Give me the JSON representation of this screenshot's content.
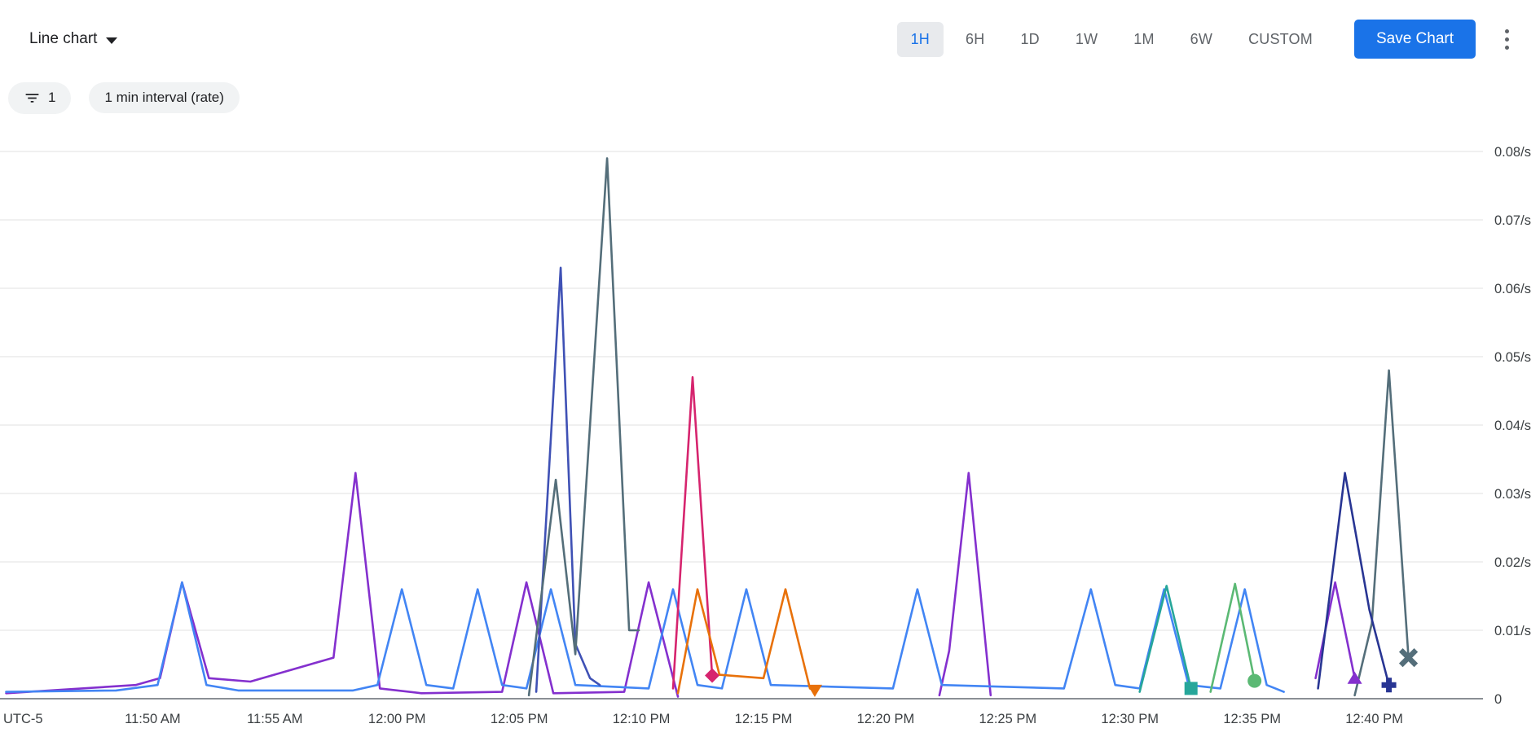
{
  "header": {
    "chart_type_label": "Line chart",
    "time_ranges": [
      "1H",
      "6H",
      "1D",
      "1W",
      "1M",
      "6W",
      "CUSTOM"
    ],
    "selected_range": "1H",
    "save_button_label": "Save Chart"
  },
  "filters": {
    "filter_count": "1",
    "interval_chip_label": "1 min interval (rate)"
  },
  "colors": {
    "accent_blue": "#1a73e8",
    "selected_range_bg": "#e8eaed",
    "chip_bg": "#f1f3f4",
    "grid_line": "#e8e8e8",
    "axis_line": "#8a8f94",
    "axis_text": "#3c4043",
    "text_secondary": "#5f6368"
  },
  "chart_data": {
    "type": "line",
    "title": "",
    "grid": true,
    "legend": "none",
    "timezone_label": "UTC-5",
    "x_unit": "minutes after 11:44 AM",
    "x_domain_minutes": [
      -0.25,
      60.45
    ],
    "x_tick_minutes": [
      6,
      11,
      16,
      21,
      26,
      31,
      36,
      41,
      46,
      51,
      56
    ],
    "x_tick_labels": [
      "11:50 AM",
      "11:55 AM",
      "12:00 PM",
      "12:05 PM",
      "12:10 PM",
      "12:15 PM",
      "12:20 PM",
      "12:25 PM",
      "12:30 PM",
      "12:35 PM",
      "12:40 PM"
    ],
    "ylim": [
      0,
      0.0805
    ],
    "y_ticks": [
      0,
      0.01,
      0.02,
      0.03,
      0.04,
      0.05,
      0.06,
      0.07,
      0.08
    ],
    "y_tick_labels": [
      "0",
      "0.01/s",
      "0.02/s",
      "0.03/s",
      "0.04/s",
      "0.05/s",
      "0.06/s",
      "0.07/s",
      "0.08/s"
    ],
    "series": [
      {
        "name": "purple",
        "color": "#8430ce",
        "segments": [
          [
            [
              0,
              0.0008
            ],
            [
              5.3,
              0.002
            ],
            [
              6.3,
              0.003
            ],
            [
              7.2,
              0.017
            ],
            [
              8.3,
              0.003
            ],
            [
              10,
              0.0025
            ],
            [
              13.4,
              0.006
            ],
            [
              14.3,
              0.033
            ],
            [
              15.3,
              0.0015
            ],
            [
              17,
              0.0008
            ],
            [
              20.3,
              0.001
            ],
            [
              21.3,
              0.017
            ],
            [
              22.4,
              0.0008
            ],
            [
              25.3,
              0.001
            ],
            [
              26.3,
              0.017
            ],
            [
              27.5,
              0.0003
            ]
          ],
          [
            [
              38.2,
              0.0005
            ],
            [
              38.6,
              0.007
            ],
            [
              39.4,
              0.033
            ],
            [
              40.3,
              0.0005
            ]
          ],
          [
            [
              53.6,
              0.003
            ],
            [
              54.4,
              0.017
            ],
            [
              55.2,
              0.003
            ]
          ]
        ],
        "marker": {
          "shape": "triangle-up",
          "at": [
            55.2,
            0.003
          ]
        }
      },
      {
        "name": "blue",
        "color": "#4285f4",
        "segments": [
          [
            [
              0,
              0.001
            ],
            [
              4.5,
              0.0012
            ],
            [
              6.2,
              0.002
            ],
            [
              7.2,
              0.017
            ],
            [
              8.2,
              0.002
            ],
            [
              9.5,
              0.0012
            ],
            [
              14.2,
              0.0012
            ],
            [
              15.2,
              0.002
            ],
            [
              16.2,
              0.016
            ],
            [
              17.2,
              0.002
            ],
            [
              18.3,
              0.0015
            ],
            [
              19.3,
              0.016
            ],
            [
              20.3,
              0.002
            ],
            [
              21.3,
              0.0015
            ],
            [
              22.3,
              0.016
            ],
            [
              23.3,
              0.002
            ],
            [
              26.3,
              0.0015
            ],
            [
              27.3,
              0.016
            ],
            [
              28.3,
              0.002
            ],
            [
              29.3,
              0.0015
            ],
            [
              30.3,
              0.016
            ],
            [
              31.3,
              0.002
            ],
            [
              36.3,
              0.0015
            ],
            [
              37.3,
              0.016
            ],
            [
              38.3,
              0.002
            ],
            [
              43.3,
              0.0015
            ],
            [
              44.4,
              0.016
            ],
            [
              45.4,
              0.002
            ],
            [
              46.4,
              0.0015
            ],
            [
              47.4,
              0.016
            ],
            [
              48.4,
              0.002
            ],
            [
              49.7,
              0.0015
            ],
            [
              50.7,
              0.016
            ],
            [
              51.6,
              0.002
            ],
            [
              52.3,
              0.001
            ]
          ]
        ]
      },
      {
        "name": "indigo",
        "color": "#3f51b5",
        "segments": [
          [
            [
              21.7,
              0.001
            ],
            [
              22.7,
              0.063
            ],
            [
              23.3,
              0.008
            ],
            [
              23.9,
              0.003
            ],
            [
              24.3,
              0.002
            ]
          ]
        ]
      },
      {
        "name": "slate",
        "color": "#546e7a",
        "segments": [
          [
            [
              21.4,
              0.0005
            ],
            [
              22.5,
              0.032
            ],
            [
              23.3,
              0.0065
            ],
            [
              24.6,
              0.079
            ],
            [
              25.5,
              0.01
            ],
            [
              25.9,
              0.01
            ]
          ],
          [
            [
              55.2,
              0.0005
            ],
            [
              55.9,
              0.011
            ],
            [
              56.6,
              0.048
            ],
            [
              57.4,
              0.006
            ]
          ]
        ],
        "marker": {
          "shape": "x",
          "at": [
            57.4,
            0.006
          ]
        }
      },
      {
        "name": "pink",
        "color": "#d6246e",
        "segments": [
          [
            [
              27.3,
              0.0015
            ],
            [
              28.1,
              0.047
            ],
            [
              28.9,
              0.0034
            ]
          ]
        ],
        "marker": {
          "shape": "diamond",
          "at": [
            28.9,
            0.0034
          ]
        }
      },
      {
        "name": "orange",
        "color": "#e8710a",
        "segments": [
          [
            [
              27.5,
              0.0008
            ],
            [
              28.3,
              0.016
            ],
            [
              29.2,
              0.0035
            ],
            [
              31,
              0.003
            ],
            [
              31.9,
              0.016
            ],
            [
              32.9,
              0.0015
            ],
            [
              33.1,
              0.0012
            ]
          ]
        ],
        "marker": {
          "shape": "triangle-down",
          "at": [
            33.1,
            0.0012
          ]
        }
      },
      {
        "name": "teal",
        "color": "#26a69a",
        "segments": [
          [
            [
              46.4,
              0.001
            ],
            [
              47.5,
              0.0165
            ],
            [
              48.5,
              0.0015
            ]
          ]
        ],
        "marker": {
          "shape": "square",
          "at": [
            48.5,
            0.0015
          ]
        }
      },
      {
        "name": "green",
        "color": "#5bb974",
        "segments": [
          [
            [
              49.3,
              0.001
            ],
            [
              50.3,
              0.0168
            ],
            [
              51.1,
              0.0026
            ]
          ]
        ],
        "marker": {
          "shape": "circle",
          "at": [
            51.1,
            0.0026
          ]
        }
      },
      {
        "name": "navy",
        "color": "#283593",
        "segments": [
          [
            [
              53.7,
              0.0015
            ],
            [
              54.8,
              0.033
            ],
            [
              55.8,
              0.013
            ],
            [
              56.6,
              0.002
            ]
          ]
        ],
        "marker": {
          "shape": "plus",
          "at": [
            56.6,
            0.002
          ]
        }
      }
    ]
  }
}
